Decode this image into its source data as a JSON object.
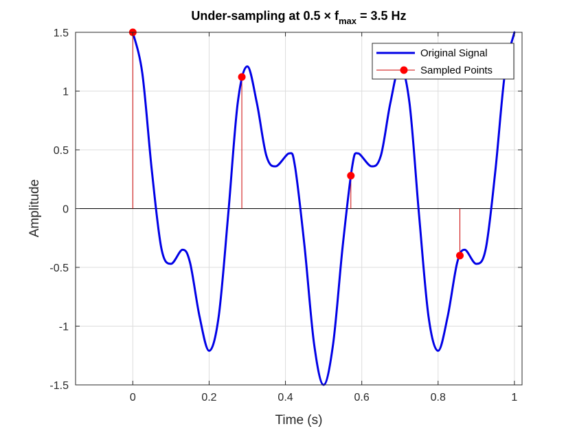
{
  "chart_data": {
    "type": "line",
    "title": {
      "prefix": "Under-sampling at 0.5 × f",
      "subscript": "max",
      "suffix": " = 3.5 Hz"
    },
    "xlabel": "Time (s)",
    "ylabel": "Amplitude",
    "xlim": [
      -0.15,
      1.02
    ],
    "ylim": [
      -1.5,
      1.5
    ],
    "xticks": [
      0,
      0.2,
      0.4,
      0.6,
      0.8,
      1
    ],
    "xtick_labels": [
      "0",
      "0.2",
      "0.4",
      "0.6",
      "0.8",
      "1"
    ],
    "yticks": [
      -1.5,
      -1,
      -0.5,
      0,
      0.5,
      1,
      1.5
    ],
    "ytick_labels": [
      "-1.5",
      "-1",
      "-0.5",
      "0",
      "0.5",
      "1",
      "1.5"
    ],
    "grid": true,
    "legend_position": "top-right",
    "series": [
      {
        "name": "Original Signal",
        "style": "line",
        "color": "#0000e6",
        "x": [
          0,
          0.025,
          0.05,
          0.075,
          0.1,
          0.13,
          0.15,
          0.175,
          0.2,
          0.225,
          0.25,
          0.275,
          0.3,
          0.325,
          0.35,
          0.375,
          0.41,
          0.425,
          0.45,
          0.475,
          0.5,
          0.525,
          0.55,
          0.575,
          0.59,
          0.625,
          0.65,
          0.675,
          0.7,
          0.725,
          0.75,
          0.775,
          0.8,
          0.825,
          0.85,
          0.87,
          0.9,
          0.925,
          0.95,
          0.975,
          1
        ],
        "y": [
          1.5,
          1.15,
          0.32,
          -0.34,
          -0.47,
          -0.35,
          -0.46,
          -0.92,
          -1.21,
          -0.92,
          -0.05,
          0.9,
          1.21,
          0.9,
          0.45,
          0.36,
          0.47,
          0.36,
          -0.32,
          -1.15,
          -1.5,
          -1.15,
          -0.32,
          0.36,
          0.47,
          0.36,
          0.45,
          0.9,
          1.21,
          0.9,
          -0.05,
          -0.92,
          -1.21,
          -0.92,
          -0.46,
          -0.35,
          -0.47,
          -0.34,
          0.32,
          1.15,
          1.5
        ]
      },
      {
        "name": "Sampled Points",
        "style": "stem",
        "color": "#ff0000",
        "stem_color": "#cc0000",
        "x": [
          0,
          0.2857,
          0.5714,
          0.8571
        ],
        "y": [
          1.5,
          1.12,
          0.28,
          -0.4
        ]
      }
    ]
  }
}
